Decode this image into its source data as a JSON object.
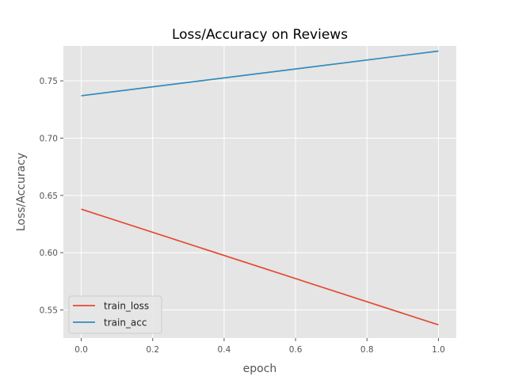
{
  "chart_data": {
    "type": "line",
    "title": "Loss/Accuracy on Reviews",
    "xlabel": "epoch",
    "ylabel": "Loss/Accuracy",
    "xlim": [
      -0.05,
      1.05
    ],
    "ylim": [
      0.5255,
      0.7805
    ],
    "xticks": [
      0.0,
      0.2,
      0.4,
      0.6,
      0.8,
      1.0
    ],
    "xtick_labels": [
      "0.0",
      "0.2",
      "0.4",
      "0.6",
      "0.8",
      "1.0"
    ],
    "yticks": [
      0.55,
      0.6,
      0.65,
      0.7,
      0.75
    ],
    "ytick_labels": [
      "0.55",
      "0.60",
      "0.65",
      "0.70",
      "0.75"
    ],
    "grid": true,
    "legend_position": "lower-left",
    "x": [
      0,
      1
    ],
    "series": [
      {
        "name": "train_loss",
        "values": [
          0.638,
          0.537
        ],
        "color": "#E24A33"
      },
      {
        "name": "train_acc",
        "values": [
          0.737,
          0.776
        ],
        "color": "#348ABD"
      }
    ]
  }
}
